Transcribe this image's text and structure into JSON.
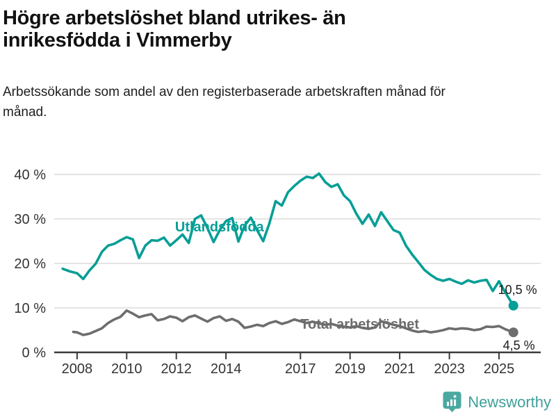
{
  "chart_data": {
    "type": "line",
    "title": "Högre arbetslöshet bland utrikes- än inrikesfödda i Vimmerby",
    "subtitle": "Arbetssökande som andel av den registerbaserade arbetskraften månad för månad.",
    "xlabel": "",
    "ylabel": "",
    "x_unit": "year",
    "y_unit": "percent",
    "ylim": [
      0,
      40
    ],
    "xlim": [
      2007.08,
      2026.68
    ],
    "grid": "horizontal",
    "grid_color": "#dcdcdc",
    "axis_color": "#3a3a3a",
    "axis_text_color": "#333333",
    "end_label_color": "#1a1a1a",
    "legend": "inline-labels",
    "yticks": [
      {
        "label": "40 %",
        "value": 40
      },
      {
        "label": "30 %",
        "value": 30
      },
      {
        "label": "20 %",
        "value": 20
      },
      {
        "label": "10 %",
        "value": 10
      },
      {
        "label": "0 %",
        "value": 0
      }
    ],
    "xticks": [
      {
        "label": "2008",
        "value": 2008
      },
      {
        "label": "2010",
        "value": 2010
      },
      {
        "label": "2012",
        "value": 2012
      },
      {
        "label": "2014",
        "value": 2014
      },
      {
        "label": "2017",
        "value": 2017
      },
      {
        "label": "2019",
        "value": 2019
      },
      {
        "label": "2021",
        "value": 2021
      },
      {
        "label": "2023",
        "value": 2023
      },
      {
        "label": "2025",
        "value": 2025
      }
    ],
    "series": [
      {
        "name": "Utlandsfödda",
        "color": "#069e96",
        "end_label": "10,5 %",
        "end_value": 10.5,
        "label_at": {
          "x": 2011.95,
          "y": 28.3
        },
        "end_label_offset": [
          34,
          -17
        ],
        "x": [
          2007.42,
          2007.71,
          2008,
          2008.25,
          2008.5,
          2008.75,
          2009,
          2009.25,
          2009.5,
          2009.75,
          2010,
          2010.25,
          2010.5,
          2010.75,
          2011,
          2011.25,
          2011.5,
          2011.75,
          2012,
          2012.25,
          2012.5,
          2012.75,
          2013,
          2013.25,
          2013.5,
          2013.75,
          2014,
          2014.25,
          2014.5,
          2014.75,
          2015,
          2015.25,
          2015.5,
          2015.75,
          2016,
          2016.25,
          2016.5,
          2016.75,
          2017,
          2017.25,
          2017.5,
          2017.75,
          2018,
          2018.25,
          2018.5,
          2018.75,
          2019,
          2019.25,
          2019.5,
          2019.75,
          2020,
          2020.25,
          2020.5,
          2020.75,
          2021,
          2021.25,
          2021.5,
          2021.75,
          2022,
          2022.25,
          2022.5,
          2022.75,
          2023,
          2023.25,
          2023.5,
          2023.75,
          2024,
          2024.25,
          2024.5,
          2024.75,
          2025,
          2025.25,
          2025.58
        ],
        "values": [
          18.8,
          18.2,
          17.8,
          16.5,
          18.4,
          19.9,
          22.6,
          24.0,
          24.4,
          25.2,
          25.9,
          25.4,
          21.2,
          24.0,
          25.2,
          25.1,
          25.8,
          24.0,
          25.2,
          26.5,
          24.6,
          30.0,
          30.8,
          28.0,
          24.8,
          27.5,
          29.5,
          30.2,
          24.9,
          28.5,
          30.3,
          27.5,
          25.0,
          29.0,
          34.0,
          33.0,
          36.0,
          37.4,
          38.6,
          39.5,
          39.2,
          40.2,
          38.3,
          37.2,
          37.8,
          35.3,
          34.0,
          31.2,
          28.9,
          31.0,
          28.4,
          31.5,
          29.5,
          27.5,
          26.9,
          24.0,
          22.0,
          20.3,
          18.5,
          17.4,
          16.5,
          16.1,
          16.5,
          15.9,
          15.4,
          16.2,
          15.7,
          16.1,
          16.3,
          13.8,
          16.0,
          13.5,
          10.5
        ]
      },
      {
        "name": "Total arbetslöshet",
        "color": "#6d6d6d",
        "end_label": "4,5 %",
        "end_value": 4.5,
        "label_at": {
          "x": 2017.0,
          "y": 6.4
        },
        "end_label_offset": [
          31,
          25
        ],
        "x": [
          2007.85,
          2008,
          2008.25,
          2008.5,
          2008.75,
          2009,
          2009.25,
          2009.5,
          2009.75,
          2010,
          2010.25,
          2010.5,
          2010.75,
          2011,
          2011.25,
          2011.5,
          2011.75,
          2012,
          2012.25,
          2012.5,
          2012.75,
          2013,
          2013.25,
          2013.5,
          2013.75,
          2014,
          2014.25,
          2014.5,
          2014.75,
          2015,
          2015.25,
          2015.5,
          2015.75,
          2016,
          2016.25,
          2016.5,
          2016.75,
          2017,
          2017.25,
          2017.5,
          2017.75,
          2018,
          2018.25,
          2018.5,
          2018.75,
          2019,
          2019.25,
          2019.5,
          2019.75,
          2020,
          2020.25,
          2020.5,
          2020.75,
          2021,
          2021.25,
          2021.5,
          2021.75,
          2022,
          2022.25,
          2022.5,
          2022.75,
          2023,
          2023.25,
          2023.5,
          2023.75,
          2024,
          2024.25,
          2024.5,
          2024.75,
          2025,
          2025.25,
          2025.58
        ],
        "values": [
          4.6,
          4.5,
          3.9,
          4.2,
          4.8,
          5.4,
          6.6,
          7.4,
          8.0,
          9.4,
          8.7,
          7.9,
          8.3,
          8.6,
          7.2,
          7.5,
          8.1,
          7.8,
          7.0,
          7.9,
          8.3,
          7.6,
          6.9,
          7.7,
          8.1,
          7.1,
          7.5,
          6.9,
          5.5,
          5.8,
          6.2,
          5.9,
          6.6,
          7.0,
          6.4,
          6.8,
          7.4,
          7.0,
          6.6,
          6.9,
          6.5,
          6.2,
          6.4,
          6.0,
          5.8,
          5.6,
          5.9,
          5.5,
          5.3,
          5.6,
          7.0,
          6.6,
          6.2,
          5.9,
          5.4,
          4.9,
          4.6,
          4.8,
          4.5,
          4.7,
          5.0,
          5.4,
          5.2,
          5.4,
          5.3,
          5.0,
          5.2,
          5.8,
          5.7,
          5.9,
          5.2,
          4.5
        ]
      }
    ]
  },
  "footer": {
    "brand": "Newsworthy",
    "brand_color": "#3f9f99",
    "icon_color": "#4aa8a2"
  }
}
